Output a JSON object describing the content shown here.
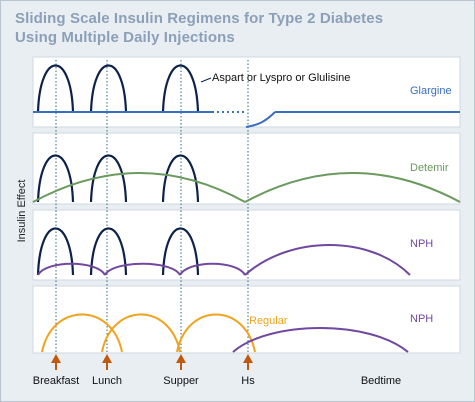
{
  "title_line_1": "Sliding Scale Insulin Regimens for Type 2 Diabetes",
  "title_line_2": "Using Multiple Daily Injections",
  "y_axis_label": "Insulin Effect",
  "colors": {
    "rapid": "#0d2249",
    "glargine": "#3a6fbf",
    "detemir": "#6a9a5e",
    "nph": "#7048a0",
    "regular": "#f0a31e",
    "arrow": "#c0590e",
    "panel_bg": "#ffffff",
    "frame_bg": "#e9eef3",
    "guide": "#2a6b7c"
  },
  "rapid_label": "Aspart or Lyspro or Glulisine",
  "panels": [
    {
      "basal_label": "Glargine",
      "label_color": "#3a6fbf"
    },
    {
      "basal_label": "Detemir",
      "label_color": "#6a9a5e"
    },
    {
      "basal_label": "NPH",
      "label_color": "#7048a0"
    },
    {
      "basal_label": "NPH",
      "label_color": "#7048a0",
      "bolus_label": "Regular"
    }
  ],
  "timepoints": [
    "Breakfast",
    "Lunch",
    "Supper",
    "Hs",
    "Bedtime"
  ],
  "injection_markers": [
    "Breakfast",
    "Lunch",
    "Supper",
    "Hs"
  ]
}
